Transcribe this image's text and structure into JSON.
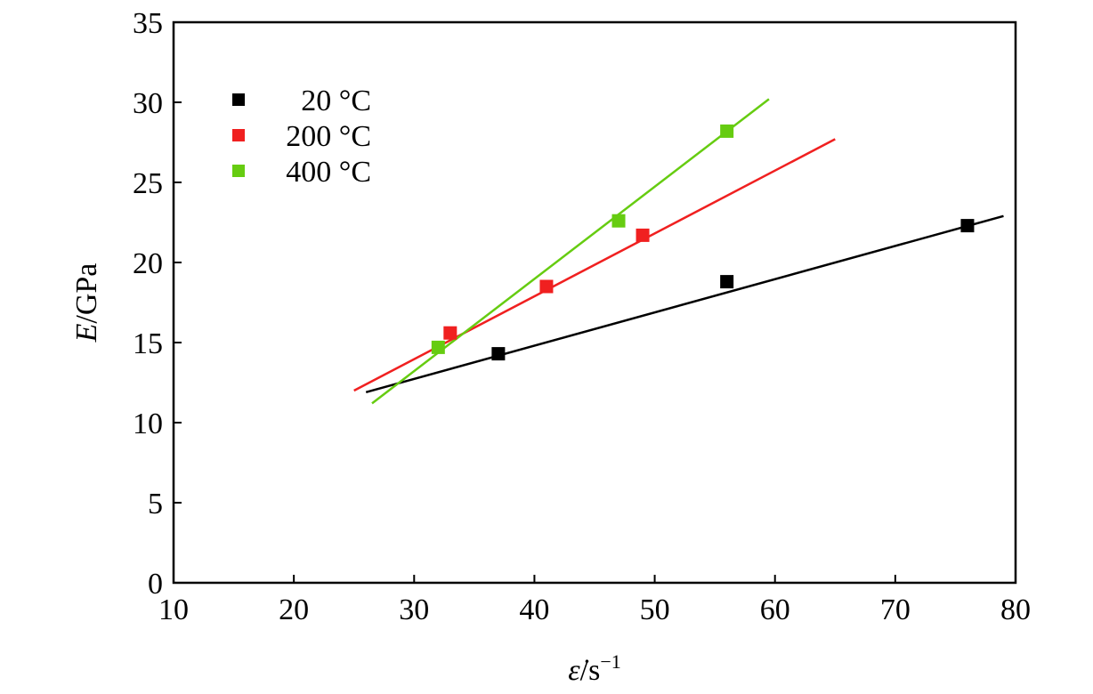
{
  "chart_data": {
    "type": "scatter",
    "xlabel": {
      "symbol": "ε̇",
      "unit": "/s",
      "exp": "−1"
    },
    "ylabel": {
      "symbol": "E",
      "unit": "/GPa"
    },
    "xlim": [
      10,
      80
    ],
    "ylim": [
      0,
      35
    ],
    "xticks": [
      "10",
      "20",
      "30",
      "40",
      "50",
      "60",
      "70",
      "80"
    ],
    "yticks": [
      "0",
      "5",
      "10",
      "15",
      "20",
      "25",
      "30",
      "35"
    ],
    "grid": false,
    "legend_position": "top-left",
    "series": [
      {
        "name": "20 °C",
        "color": "#000000",
        "points": [
          [
            37,
            14.3
          ],
          [
            56,
            18.8
          ],
          [
            76,
            22.3
          ]
        ],
        "fit": [
          [
            26,
            11.9
          ],
          [
            79,
            22.9
          ]
        ]
      },
      {
        "name": "200 °C",
        "color": "#f02020",
        "points": [
          [
            33,
            15.6
          ],
          [
            41,
            18.5
          ],
          [
            49,
            21.7
          ]
        ],
        "fit": [
          [
            25,
            12.0
          ],
          [
            65,
            27.7
          ]
        ]
      },
      {
        "name": "400 °C",
        "color": "#66cc11",
        "points": [
          [
            32,
            14.7
          ],
          [
            47,
            22.6
          ],
          [
            56,
            28.2
          ]
        ],
        "fit": [
          [
            26.5,
            11.2
          ],
          [
            59.5,
            30.2
          ]
        ]
      }
    ]
  }
}
